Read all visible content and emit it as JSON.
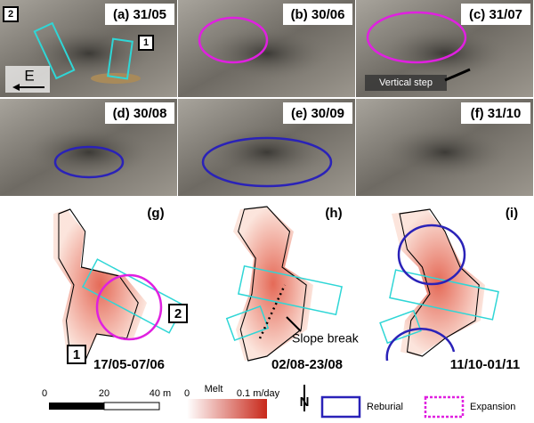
{
  "photos": [
    {
      "label": "(a) 31/05"
    },
    {
      "label": "(b) 30/06"
    },
    {
      "label": "(c) 31/07"
    },
    {
      "label": "(d) 30/08"
    },
    {
      "label": "(e) 30/09"
    },
    {
      "label": "(f) 31/10"
    }
  ],
  "photo_annotations": {
    "box_1": "1",
    "box_2": "2",
    "direction": "E",
    "vertical_step": "Vertical step"
  },
  "maps": [
    {
      "label": "(g)",
      "period": "17/05-07/06"
    },
    {
      "label": "(h)",
      "period": "02/08-23/08"
    },
    {
      "label": "(i)",
      "period": "11/10-01/11"
    }
  ],
  "map_annotations": {
    "box_1": "1",
    "box_2": "2",
    "slope_break": "Slope break"
  },
  "legend": {
    "scale": [
      "0",
      "20",
      "40 m"
    ],
    "melt_title": "Melt",
    "melt_min": "0",
    "melt_max": "0.1 m/day",
    "north": "N",
    "reburial": "Reburial",
    "expansion": "Expansion"
  }
}
